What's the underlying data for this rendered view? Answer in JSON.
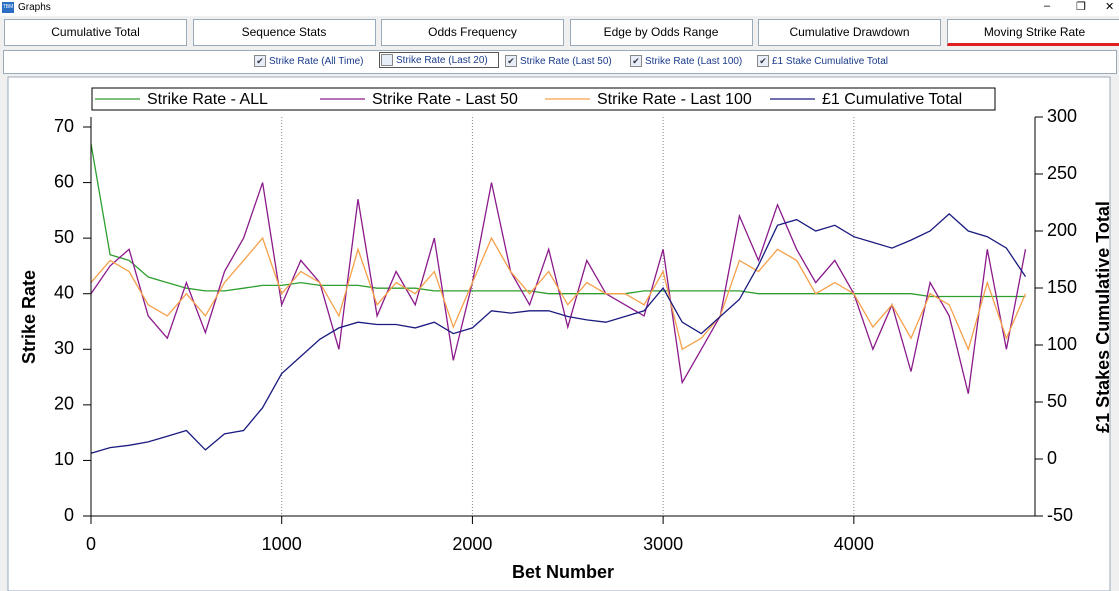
{
  "window": {
    "title": "Graphs"
  },
  "tabs": {
    "items": [
      "Cumulative Total",
      "Sequence Stats",
      "Odds Frequency",
      "Edge by Odds Range",
      "Cumulative Drawdown",
      "Moving Strike Rate"
    ],
    "active": 5
  },
  "options": [
    {
      "label": "Strike Rate (All Time)",
      "checked": true
    },
    {
      "label": "Strike Rate (Last 20)",
      "checked": false
    },
    {
      "label": "Strike Rate (Last 50)",
      "checked": true
    },
    {
      "label": "Strike Rate (Last 100)",
      "checked": true
    },
    {
      "label": "£1 Stake Cumulative Total",
      "checked": true
    }
  ],
  "chart_data": {
    "type": "line",
    "x_label": "Bet Number",
    "y_label": "Strike Rate",
    "y2_label": "£1 Stakes Cumulative Total",
    "x": [
      0,
      100,
      200,
      300,
      400,
      500,
      600,
      700,
      800,
      900,
      1000,
      1100,
      1200,
      1300,
      1400,
      1500,
      1600,
      1700,
      1800,
      1900,
      2000,
      2100,
      2200,
      2300,
      2400,
      2500,
      2600,
      2700,
      2800,
      2900,
      3000,
      3100,
      3200,
      3300,
      3400,
      3500,
      3600,
      3700,
      3800,
      3900,
      4000,
      4100,
      4200,
      4300,
      4400,
      4500,
      4600,
      4700,
      4800,
      4900
    ],
    "xlim": [
      0,
      4950
    ],
    "xticks": [
      0,
      1000,
      2000,
      3000,
      4000
    ],
    "ylim": [
      0,
      71.8
    ],
    "yticks": [
      0,
      10,
      20,
      30,
      40,
      50,
      60,
      70
    ],
    "y2lim": [
      -50,
      300
    ],
    "y2ticks": [
      -50,
      0,
      50,
      100,
      150,
      200,
      250,
      300
    ],
    "grid": true,
    "series": [
      {
        "name": "Strike Rate - ALL",
        "color": "#2e9e2e",
        "values": [
          67,
          47,
          46,
          43,
          42,
          41,
          40.5,
          40.5,
          41,
          41.5,
          41.5,
          42,
          41.5,
          41.5,
          41.5,
          41,
          41,
          41,
          40.5,
          40.5,
          40.5,
          40.5,
          40.5,
          40.5,
          40,
          40,
          40,
          40,
          40,
          40.5,
          40.5,
          40.5,
          40.5,
          40.5,
          40.5,
          40,
          40,
          40,
          40,
          40,
          40,
          40,
          40,
          40,
          39.5,
          39.5,
          39.5,
          39.5,
          39.5,
          39.5
        ]
      },
      {
        "name": "Strike Rate - Last 50",
        "color": "#8b1a8b",
        "values": [
          40,
          45,
          48,
          36,
          32,
          42,
          33,
          44,
          50,
          60,
          38,
          46,
          42,
          30,
          57,
          36,
          44,
          38,
          50,
          28,
          42,
          60,
          44,
          38,
          48,
          34,
          46,
          40,
          38,
          36,
          48,
          24,
          30,
          36,
          54,
          46,
          56,
          48,
          42,
          46,
          40,
          30,
          38,
          26,
          42,
          36,
          22,
          48,
          30,
          48
        ]
      },
      {
        "name": "Strike Rate - Last 100",
        "color": "#f5a04a",
        "values": [
          42,
          46,
          44,
          38,
          36,
          40,
          36,
          42,
          46,
          50,
          40,
          44,
          42,
          36,
          48,
          38,
          42,
          40,
          44,
          34,
          42,
          50,
          44,
          40,
          44,
          38,
          42,
          40,
          40,
          38,
          44,
          30,
          32,
          36,
          46,
          44,
          48,
          46,
          40,
          42,
          40,
          34,
          38,
          32,
          40,
          38,
          30,
          42,
          32,
          40
        ]
      },
      {
        "name": "£1 Cumulative Total",
        "color": "#1a1a80",
        "axis": "y2",
        "values": [
          5,
          10,
          12,
          15,
          20,
          25,
          8,
          22,
          25,
          45,
          75,
          90,
          105,
          115,
          120,
          118,
          118,
          115,
          120,
          110,
          115,
          130,
          128,
          130,
          130,
          125,
          122,
          120,
          125,
          130,
          150,
          120,
          110,
          125,
          140,
          170,
          205,
          210,
          200,
          205,
          195,
          190,
          185,
          192,
          200,
          215,
          200,
          195,
          185,
          160
        ]
      }
    ]
  }
}
